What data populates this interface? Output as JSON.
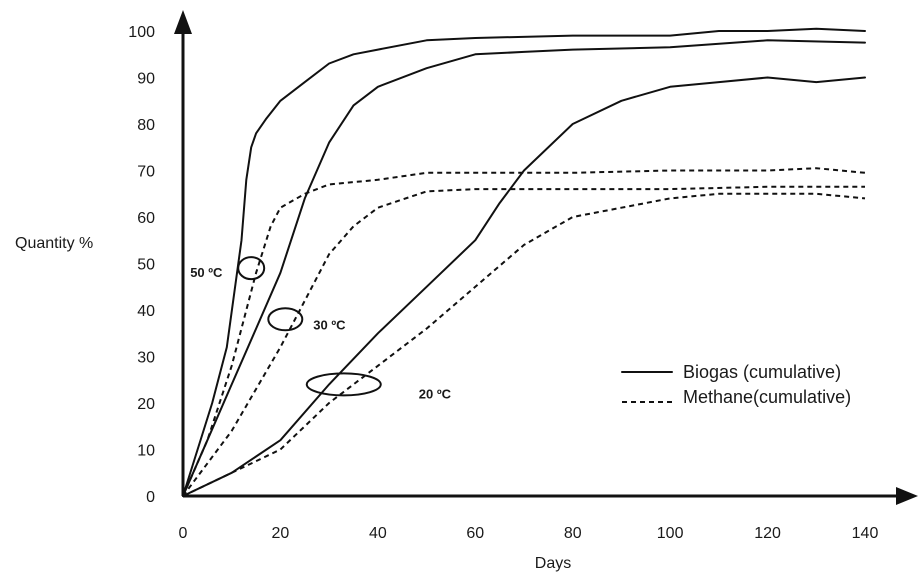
{
  "chart_data": {
    "type": "line",
    "xlabel": "Days",
    "ylabel": "Quantity %",
    "xlim": [
      0,
      140
    ],
    "ylim": [
      0,
      100
    ],
    "x_ticks": [
      "0",
      "20",
      "40",
      "60",
      "80",
      "100",
      "120",
      "140"
    ],
    "y_ticks": [
      "0",
      "10",
      "20",
      "30",
      "40",
      "50",
      "60",
      "70",
      "80",
      "90",
      "100"
    ],
    "grid": false,
    "legend": {
      "placement": "bottom-right",
      "entries": [
        {
          "label": "Biogas (cumulative)",
          "style": "solid"
        },
        {
          "label": "Methane(cumulative)",
          "style": "dashed"
        }
      ]
    },
    "annotations": [
      {
        "text": "50 ºC",
        "x": 14,
        "y": 49
      },
      {
        "text": "30 ºC",
        "x": 21,
        "y": 38
      },
      {
        "text": "20 ºC",
        "x": 33,
        "y": 24
      }
    ],
    "series": [
      {
        "group": "Biogas",
        "temperature": "50 ºC",
        "style": "solid",
        "x": [
          0,
          3,
          6,
          9,
          12,
          13,
          14,
          15,
          17,
          20,
          25,
          30,
          35,
          40,
          50,
          60,
          80,
          100,
          110,
          120,
          130,
          140
        ],
        "y": [
          0,
          10,
          20,
          32,
          55,
          68,
          75,
          78,
          81,
          85,
          89,
          93,
          95,
          96,
          98,
          98.5,
          99,
          99,
          100,
          100,
          100.5,
          100
        ]
      },
      {
        "group": "Biogas",
        "temperature": "30 ºC",
        "style": "solid",
        "x": [
          0,
          5,
          10,
          15,
          20,
          25,
          30,
          35,
          40,
          50,
          60,
          70,
          80,
          100,
          120,
          140
        ],
        "y": [
          0,
          12,
          24,
          36,
          48,
          64,
          76,
          84,
          88,
          92,
          95,
          95.5,
          96,
          96.5,
          98,
          97.5
        ]
      },
      {
        "group": "Biogas",
        "temperature": "20 ºC",
        "style": "solid",
        "x": [
          0,
          10,
          20,
          30,
          40,
          50,
          60,
          65,
          70,
          80,
          90,
          100,
          110,
          120,
          130,
          140
        ],
        "y": [
          0,
          5,
          12,
          24,
          35,
          45,
          55,
          63,
          70,
          80,
          85,
          88,
          89,
          90,
          89,
          90
        ]
      },
      {
        "group": "Methane",
        "temperature": "50 ºC",
        "style": "dashed",
        "x": [
          0,
          5,
          10,
          15,
          18,
          20,
          25,
          30,
          40,
          50,
          60,
          80,
          100,
          120,
          130,
          140
        ],
        "y": [
          0,
          12,
          28,
          48,
          58,
          62,
          65,
          67,
          68,
          69.5,
          69.5,
          69.5,
          70,
          70,
          70.5,
          69.5
        ]
      },
      {
        "group": "Methane",
        "temperature": "30 ºC",
        "style": "dashed",
        "x": [
          0,
          10,
          20,
          25,
          30,
          35,
          40,
          50,
          60,
          70,
          80,
          100,
          120,
          140
        ],
        "y": [
          0,
          14,
          32,
          42,
          52,
          58,
          62,
          65.5,
          66,
          66,
          66,
          66,
          66.5,
          66.5
        ]
      },
      {
        "group": "Methane",
        "temperature": "20 ºC",
        "style": "dashed",
        "x": [
          0,
          10,
          20,
          30,
          40,
          50,
          60,
          70,
          80,
          90,
          100,
          110,
          120,
          130,
          140
        ],
        "y": [
          0,
          5,
          10,
          20,
          28,
          36,
          45,
          54,
          60,
          62,
          64,
          65,
          65,
          65,
          64
        ]
      }
    ]
  }
}
